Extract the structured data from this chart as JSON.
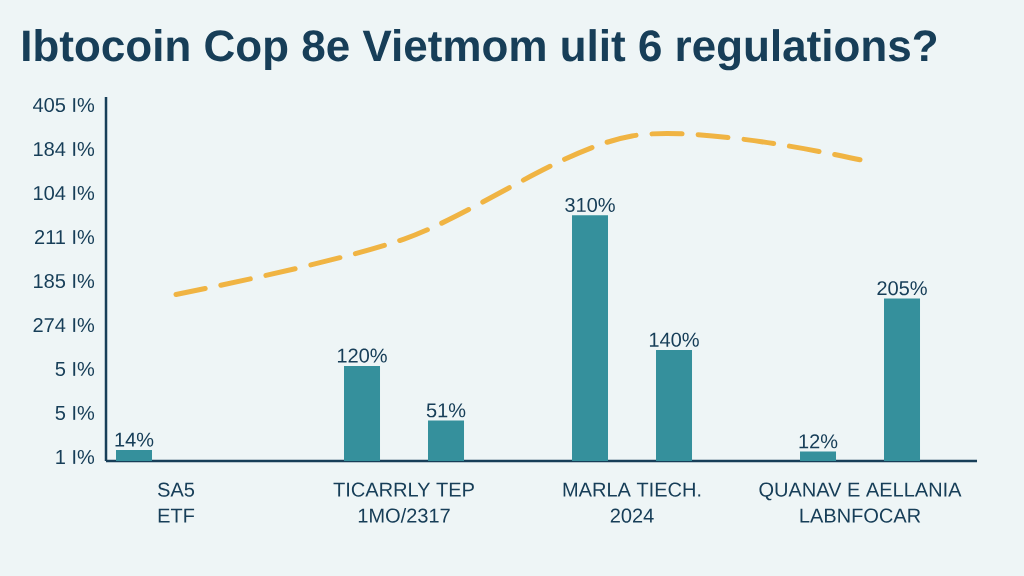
{
  "chart_data": {
    "type": "bar",
    "title": "Ibtocoin Cop 8e Vietmom ulit 6 regulations?",
    "categories": [
      "SA5\nETF",
      "TICARRLY TEP\n1MO/2317",
      "MARLA TIECH.\n2024",
      "QUANAV E AELLANIA\nLABNFOCAR"
    ],
    "annotations": [
      "405 I%",
      "184 I%",
      "104 I%",
      "211 I%",
      "185 I%",
      "274 I%",
      "5 I%",
      "5 I%",
      "1 I%"
    ],
    "series": [
      {
        "color": "#35909c",
        "values": [
          14,
          120,
          310,
          12
        ],
        "value_labels": [
          "14%",
          "120%",
          "310%",
          "12%"
        ]
      },
      {
        "color": "#35909c",
        "values": [
          null,
          51,
          140,
          205
        ],
        "value_labels": [
          null,
          "51%",
          "140%",
          "205%"
        ]
      },
      {
        "type": "line",
        "color": "#f0b443",
        "line_style": "dashed",
        "values": [
          210,
          280,
          410,
          380
        ]
      }
    ]
  }
}
